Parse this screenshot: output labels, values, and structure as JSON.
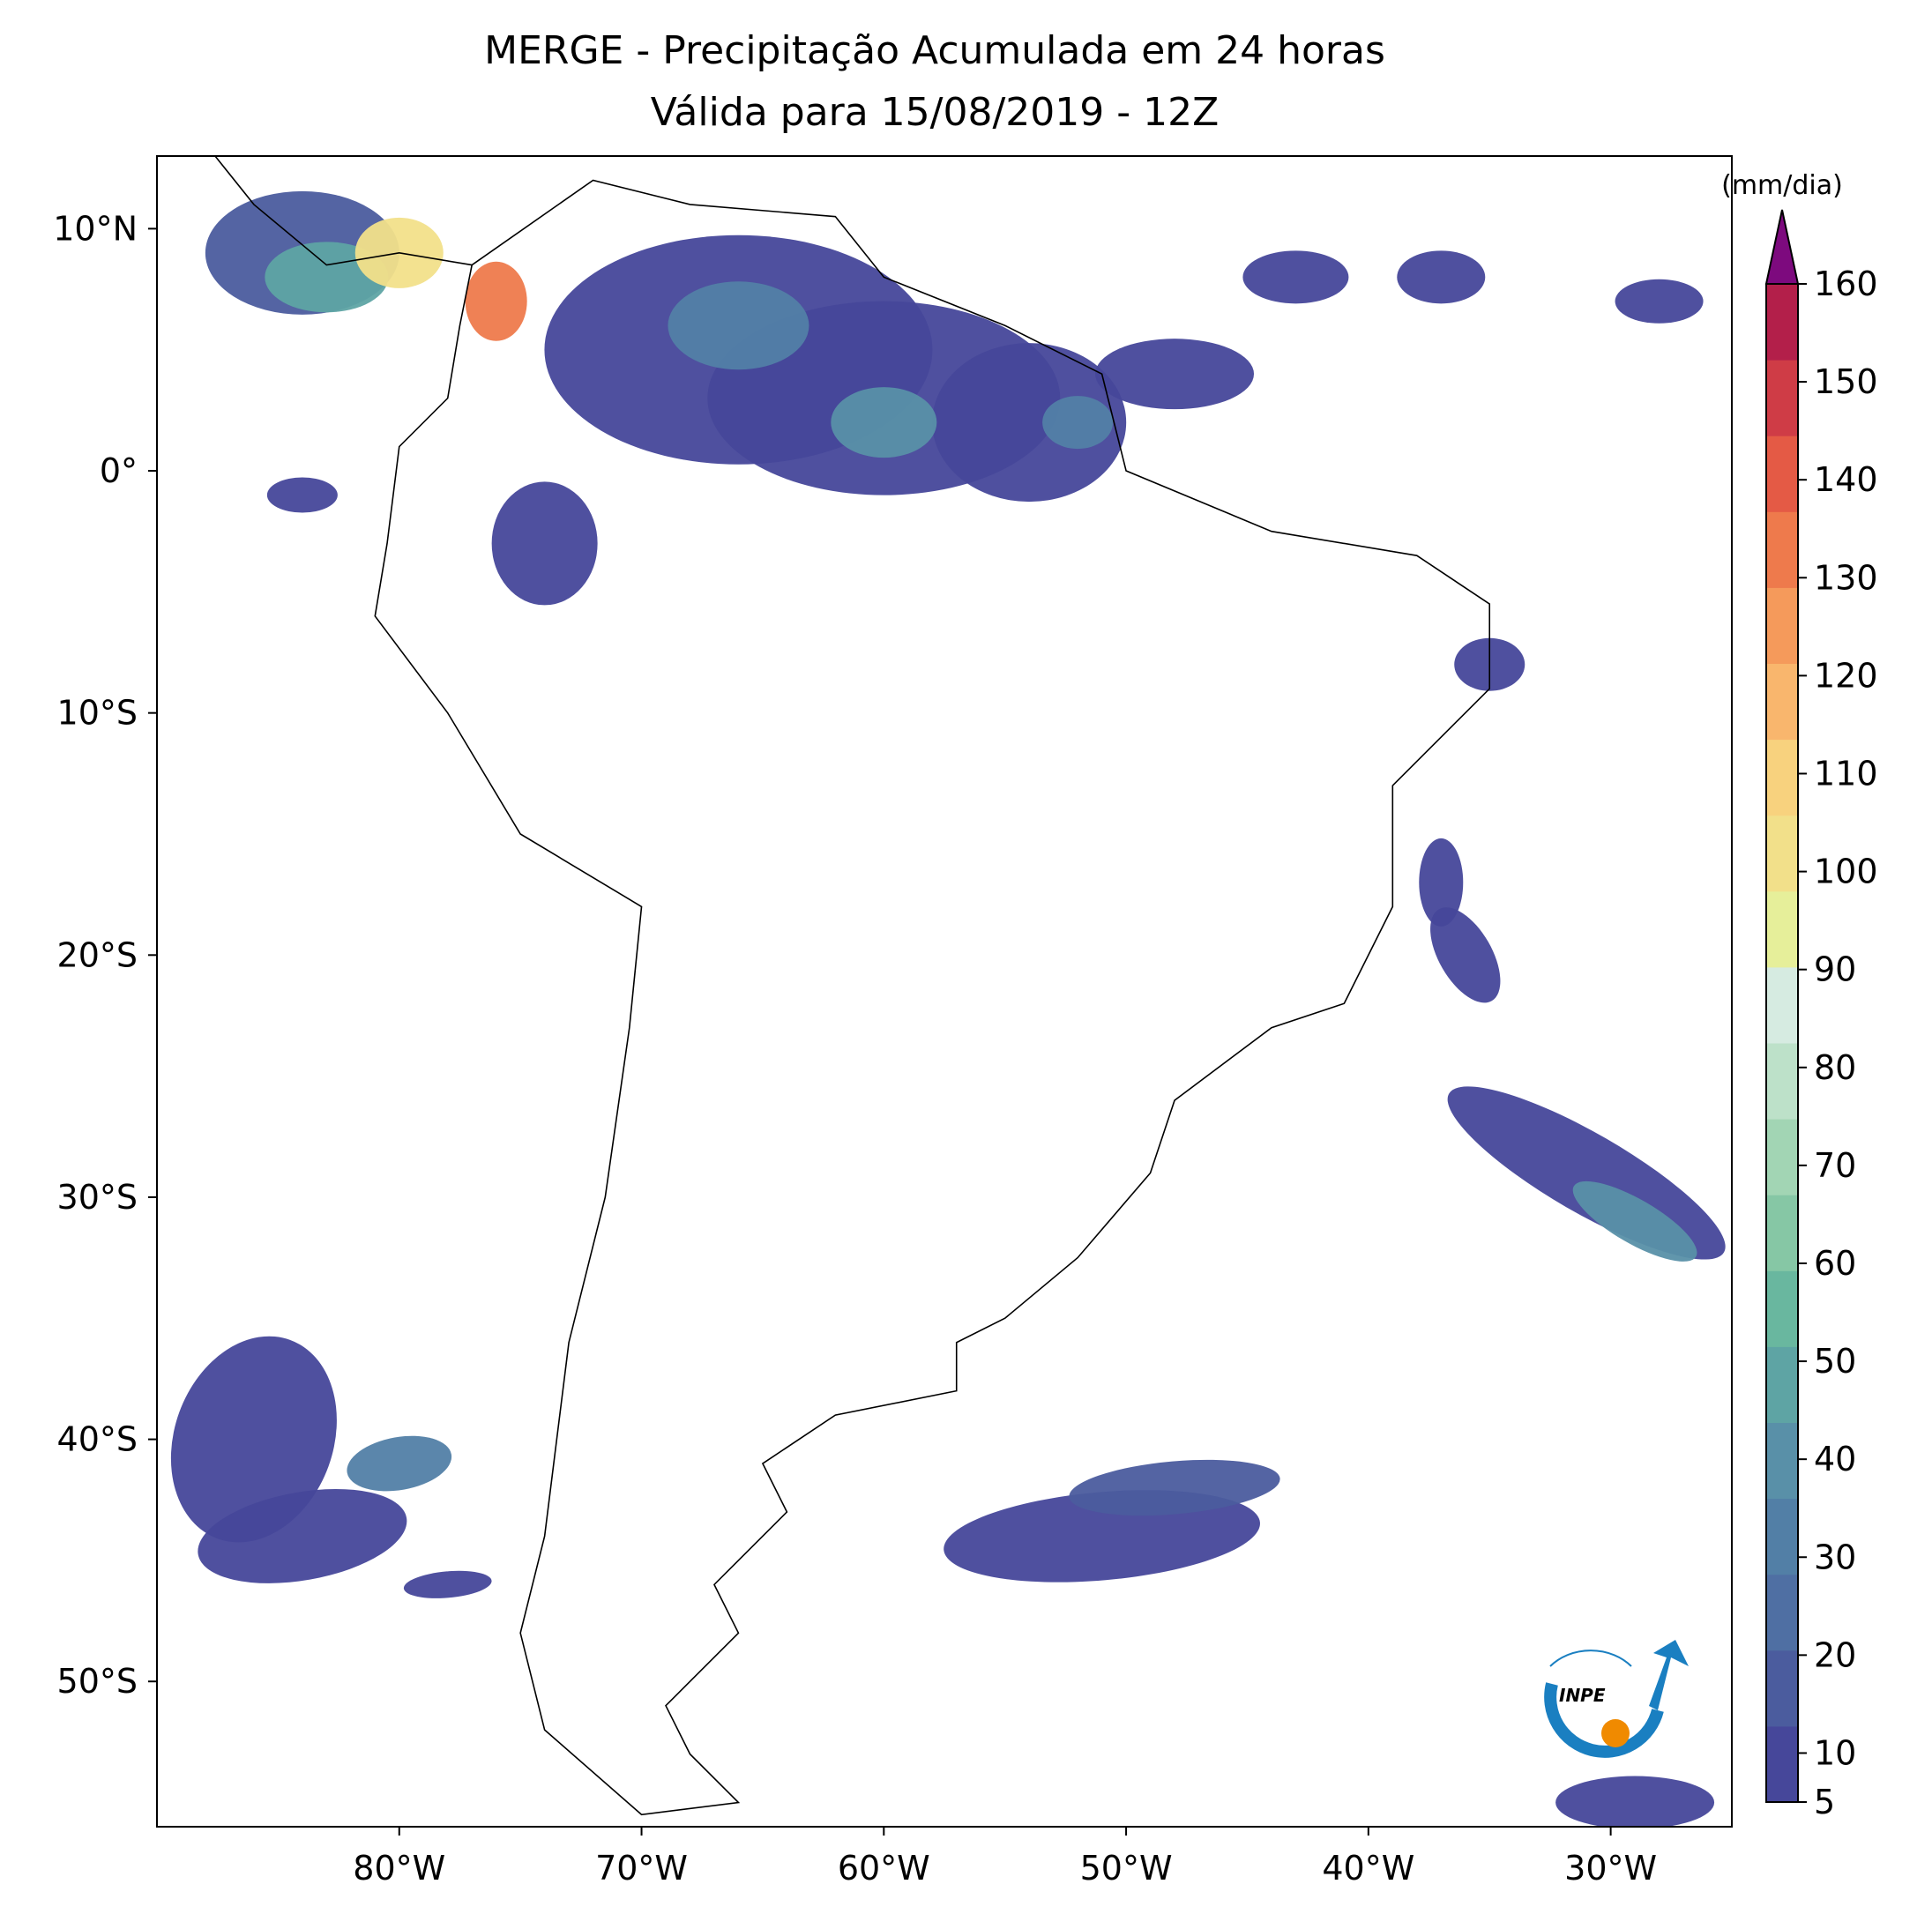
{
  "chart_data": {
    "type": "map",
    "title": "MERGE - Precipitação Acumulada em 24 horas",
    "subtitle": "Válida para 15/08/2019 - 12Z",
    "xlim": [
      -90,
      -25
    ],
    "ylim": [
      -56,
      13
    ],
    "xticks": [
      {
        "value": -80,
        "label": "80°W"
      },
      {
        "value": -70,
        "label": "70°W"
      },
      {
        "value": -60,
        "label": "60°W"
      },
      {
        "value": -50,
        "label": "50°W"
      },
      {
        "value": -40,
        "label": "40°W"
      },
      {
        "value": -30,
        "label": "30°W"
      }
    ],
    "yticks": [
      {
        "value": 10,
        "label": "10°N"
      },
      {
        "value": 0,
        "label": "0°"
      },
      {
        "value": -10,
        "label": "10°S"
      },
      {
        "value": -20,
        "label": "20°S"
      },
      {
        "value": -30,
        "label": "30°S"
      },
      {
        "value": -40,
        "label": "40°S"
      },
      {
        "value": -50,
        "label": "50°S"
      }
    ],
    "colorbar": {
      "label": "(mm/dia)",
      "lim": [
        5,
        160
      ],
      "ticks": [
        5,
        10,
        20,
        30,
        40,
        50,
        60,
        70,
        80,
        90,
        100,
        110,
        120,
        130,
        140,
        150,
        160
      ],
      "colors": [
        "#46479a",
        "#4b5c9e",
        "#4f6fa3",
        "#527fa6",
        "#5990a8",
        "#5ea4a4",
        "#69b79f",
        "#86c7a5",
        "#a2d5b4",
        "#bde1c9",
        "#d6ebe1",
        "#e6ef9a",
        "#f2e08a",
        "#f8d27e",
        "#f9b66d",
        "#f59a5b",
        "#ee7a4c",
        "#e45a45",
        "#cf3c46",
        "#b31f4a"
      ],
      "extend_color": "#7d0a7e"
    }
  }
}
